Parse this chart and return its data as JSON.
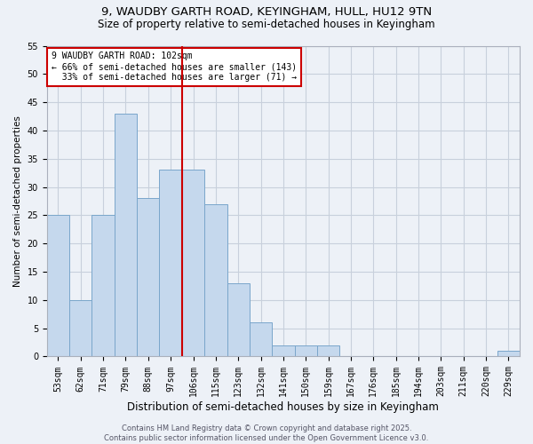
{
  "title1": "9, WAUDBY GARTH ROAD, KEYINGHAM, HULL, HU12 9TN",
  "title2": "Size of property relative to semi-detached houses in Keyingham",
  "xlabel": "Distribution of semi-detached houses by size in Keyingham",
  "ylabel": "Number of semi-detached properties",
  "categories": [
    "53sqm",
    "62sqm",
    "71sqm",
    "79sqm",
    "88sqm",
    "97sqm",
    "106sqm",
    "115sqm",
    "123sqm",
    "132sqm",
    "141sqm",
    "150sqm",
    "159sqm",
    "167sqm",
    "176sqm",
    "185sqm",
    "194sqm",
    "203sqm",
    "211sqm",
    "220sqm",
    "229sqm"
  ],
  "values": [
    25,
    10,
    25,
    43,
    28,
    33,
    33,
    27,
    13,
    6,
    2,
    2,
    2,
    0,
    0,
    0,
    0,
    0,
    0,
    0,
    1
  ],
  "bar_color": "#c5d8ed",
  "bar_edgecolor": "#7aa6cb",
  "grid_color": "#c8d0dc",
  "vline_x": 6.0,
  "vline_color": "#cc0000",
  "annotation_text": "9 WAUDBY GARTH ROAD: 102sqm\n← 66% of semi-detached houses are smaller (143)\n  33% of semi-detached houses are larger (71) →",
  "annotation_box_facecolor": "#ffffff",
  "annotation_box_edgecolor": "#cc0000",
  "ylim": [
    0,
    55
  ],
  "yticks": [
    0,
    5,
    10,
    15,
    20,
    25,
    30,
    35,
    40,
    45,
    50,
    55
  ],
  "footnote": "Contains HM Land Registry data © Crown copyright and database right 2025.\nContains public sector information licensed under the Open Government Licence v3.0.",
  "bg_color": "#edf1f7",
  "title1_fontsize": 9.5,
  "title2_fontsize": 8.5,
  "xlabel_fontsize": 8.5,
  "ylabel_fontsize": 7.5,
  "tick_fontsize": 7,
  "annotation_fontsize": 7,
  "footnote_fontsize": 6
}
